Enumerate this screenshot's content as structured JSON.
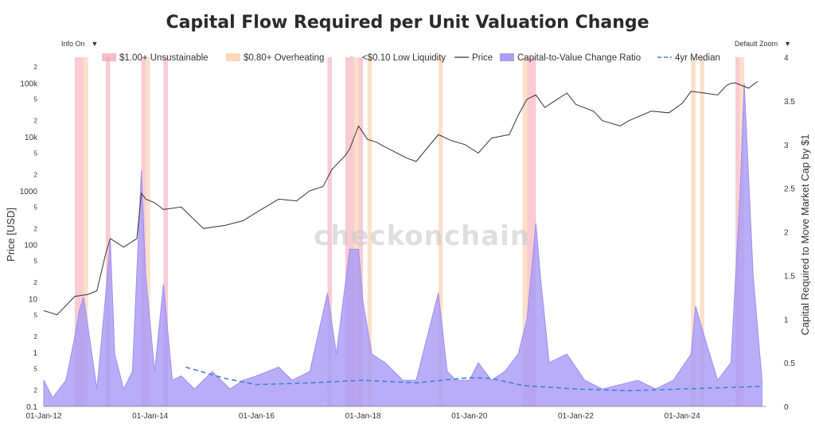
{
  "page": {
    "info_toggle_label": "Info On",
    "zoom_label": "Default Zoom",
    "watermark": "checkonchain"
  },
  "chart_data": {
    "type": "line",
    "title": "Capital Flow Required per Unit Valuation Change",
    "xlabel": "",
    "ylabel_left": "Price [USD]",
    "ylabel_right": "Capital Required to Move Market Cap by $1",
    "x_ticks": [
      "01-Jan-12",
      "01-Jan-14",
      "01-Jan-16",
      "01-Jan-18",
      "01-Jan-20",
      "01-Jan-22",
      "01-Jan-24"
    ],
    "x_range": [
      "2012-01-01",
      "2025-08-01"
    ],
    "y_left": {
      "scale": "log",
      "range": [
        0.1,
        300000
      ],
      "major_ticks": [
        {
          "value": 0.1,
          "label": "0.1"
        },
        {
          "value": 1,
          "label": "1"
        },
        {
          "value": 10,
          "label": "10"
        },
        {
          "value": 100,
          "label": "100"
        },
        {
          "value": 1000,
          "label": "1000"
        },
        {
          "value": 10000,
          "label": "10k"
        },
        {
          "value": 100000,
          "label": "100k"
        }
      ],
      "minor_ticks": [
        {
          "value": 0.2,
          "label": "2"
        },
        {
          "value": 0.5,
          "label": "5"
        },
        {
          "value": 2,
          "label": "2"
        },
        {
          "value": 5,
          "label": "5"
        },
        {
          "value": 20,
          "label": "2"
        },
        {
          "value": 50,
          "label": "5"
        },
        {
          "value": 200,
          "label": "2"
        },
        {
          "value": 500,
          "label": "5"
        },
        {
          "value": 2000,
          "label": "2"
        },
        {
          "value": 5000,
          "label": "5"
        },
        {
          "value": 20000,
          "label": "2"
        },
        {
          "value": 50000,
          "label": "5"
        },
        {
          "value": 200000,
          "label": "2"
        }
      ]
    },
    "y_right": {
      "scale": "linear",
      "range": [
        0,
        4
      ],
      "ticks": [
        {
          "value": 0,
          "label": "0"
        },
        {
          "value": 0.5,
          "label": "0.5"
        },
        {
          "value": 1,
          "label": "1"
        },
        {
          "value": 1.5,
          "label": "1.5"
        },
        {
          "value": 2,
          "label": "2"
        },
        {
          "value": 2.5,
          "label": "2.5"
        },
        {
          "value": 3,
          "label": "3"
        },
        {
          "value": 3.5,
          "label": "3.5"
        },
        {
          "value": 4,
          "label": "4"
        }
      ]
    },
    "legend": {
      "placement": "top",
      "entries": [
        {
          "label": "$1.00+ Unsustainable",
          "kind": "band",
          "color": "#f4a0ad"
        },
        {
          "label": "$0.80+ Overheating",
          "kind": "band",
          "color": "#f8c79c"
        },
        {
          "label": "<$0.10 Low Liquidity",
          "kind": "dot",
          "color": "#d9d9d9"
        },
        {
          "label": "Price",
          "kind": "line",
          "color": "#333333"
        },
        {
          "label": "Capital-to-Value Change Ratio",
          "kind": "area",
          "color": "#9f8cf2"
        },
        {
          "label": "4yr Median",
          "kind": "dash",
          "color": "#3b82d6"
        }
      ]
    },
    "colors": {
      "price": "#333333",
      "ratio_fill": "#a898f6",
      "ratio_line": "#9f8cf2",
      "median": "#3b82d6",
      "unsustainable": "#f4a0ad",
      "overheating": "#f8c79c"
    },
    "series": [
      {
        "name": "Price",
        "axis": "left",
        "x": [
          "2012-01",
          "2012-04",
          "2012-08",
          "2012-11",
          "2013-01",
          "2013-03",
          "2013-04",
          "2013-07",
          "2013-10",
          "2013-11",
          "2013-12",
          "2014-02",
          "2014-04",
          "2014-08",
          "2015-01",
          "2015-06",
          "2015-10",
          "2016-01",
          "2016-06",
          "2016-10",
          "2017-01",
          "2017-04",
          "2017-06",
          "2017-09",
          "2017-10",
          "2017-12",
          "2018-02",
          "2018-04",
          "2018-06",
          "2018-11",
          "2019-01",
          "2019-06",
          "2019-09",
          "2019-12",
          "2020-03",
          "2020-06",
          "2020-10",
          "2020-12",
          "2021-02",
          "2021-04",
          "2021-06",
          "2021-08",
          "2021-11",
          "2022-01",
          "2022-05",
          "2022-07",
          "2022-11",
          "2023-01",
          "2023-06",
          "2023-10",
          "2024-01",
          "2024-03",
          "2024-06",
          "2024-09",
          "2024-11",
          "2024-12",
          "2025-01",
          "2025-04",
          "2025-06"
        ],
        "values": [
          6,
          5,
          11,
          12,
          14,
          70,
          130,
          90,
          130,
          900,
          700,
          600,
          450,
          500,
          200,
          230,
          280,
          400,
          700,
          650,
          1000,
          1200,
          2500,
          4500,
          6000,
          16000,
          9000,
          8000,
          6500,
          4000,
          3500,
          11000,
          8500,
          7200,
          5000,
          9500,
          11000,
          25000,
          50000,
          60000,
          35000,
          45000,
          65000,
          40000,
          30000,
          20000,
          16000,
          20000,
          30000,
          28000,
          42000,
          70000,
          65000,
          60000,
          90000,
          98000,
          100000,
          80000,
          108000
        ]
      },
      {
        "name": "Capital-to-Value Change Ratio",
        "axis": "right",
        "x": [
          "2012-01",
          "2012-03",
          "2012-06",
          "2012-08",
          "2012-09",
          "2012-10",
          "2012-11",
          "2013-01",
          "2013-03",
          "2013-04",
          "2013-05",
          "2013-07",
          "2013-09",
          "2013-11",
          "2013-12",
          "2014-02",
          "2014-04",
          "2014-06",
          "2014-08",
          "2014-11",
          "2015-03",
          "2015-07",
          "2015-10",
          "2016-01",
          "2016-06",
          "2016-09",
          "2017-01",
          "2017-05",
          "2017-07",
          "2017-09",
          "2017-10",
          "2017-12",
          "2018-01",
          "2018-03",
          "2018-06",
          "2018-10",
          "2019-01",
          "2019-04",
          "2019-06",
          "2019-08",
          "2019-10",
          "2020-01",
          "2020-03",
          "2020-06",
          "2020-09",
          "2020-12",
          "2021-02",
          "2021-04",
          "2021-05",
          "2021-07",
          "2021-11",
          "2022-03",
          "2022-07",
          "2022-11",
          "2023-03",
          "2023-07",
          "2023-11",
          "2024-03",
          "2024-04",
          "2024-06",
          "2024-09",
          "2024-12",
          "2025-02",
          "2025-03",
          "2025-05",
          "2025-07"
        ],
        "values": [
          0.3,
          0.1,
          0.3,
          0.8,
          1.1,
          1.25,
          0.9,
          0.2,
          1.3,
          1.9,
          0.6,
          0.2,
          0.4,
          2.7,
          1.5,
          0.4,
          1.4,
          0.3,
          0.35,
          0.2,
          0.4,
          0.2,
          0.3,
          0.35,
          0.45,
          0.3,
          0.4,
          1.3,
          0.6,
          1.4,
          1.8,
          1.8,
          1.2,
          0.6,
          0.5,
          0.3,
          0.3,
          0.9,
          1.3,
          0.4,
          0.3,
          0.3,
          0.5,
          0.3,
          0.4,
          0.6,
          1.0,
          2.1,
          1.5,
          0.5,
          0.6,
          0.3,
          0.2,
          0.25,
          0.3,
          0.2,
          0.3,
          0.6,
          1.15,
          0.8,
          0.3,
          0.5,
          2.4,
          3.7,
          1.5,
          0.3
        ]
      },
      {
        "name": "4yr Median",
        "axis": "right",
        "x": [
          "2014-09",
          "2015-06",
          "2016-01",
          "2017-01",
          "2018-01",
          "2019-01",
          "2020-01",
          "2020-06",
          "2021-01",
          "2022-01",
          "2023-01",
          "2024-01",
          "2025-07"
        ],
        "values": [
          0.45,
          0.32,
          0.25,
          0.27,
          0.3,
          0.27,
          0.33,
          0.32,
          0.24,
          0.2,
          0.18,
          0.2,
          0.23
        ]
      }
    ],
    "bands": {
      "unsustainable": [
        [
          "2012-08",
          "2012-10"
        ],
        [
          "2013-03",
          "2013-04"
        ],
        [
          "2013-11",
          "2013-12"
        ],
        [
          "2014-04",
          "2014-05"
        ],
        [
          "2017-05",
          "2017-06"
        ],
        [
          "2017-09",
          "2017-11"
        ],
        [
          "2017-12",
          "2018-01"
        ],
        [
          "2021-02",
          "2021-04"
        ],
        [
          "2025-01",
          "2025-02"
        ]
      ],
      "overheating": [
        [
          "2012-10",
          "2012-11"
        ],
        [
          "2013-12",
          "2014-01"
        ],
        [
          "2017-11",
          "2017-12"
        ],
        [
          "2018-02",
          "2018-03"
        ],
        [
          "2019-06",
          "2019-07"
        ],
        [
          "2021-01",
          "2021-02"
        ],
        [
          "2024-03",
          "2024-04"
        ],
        [
          "2024-05",
          "2024-06"
        ],
        [
          "2025-02",
          "2025-03"
        ]
      ]
    }
  }
}
